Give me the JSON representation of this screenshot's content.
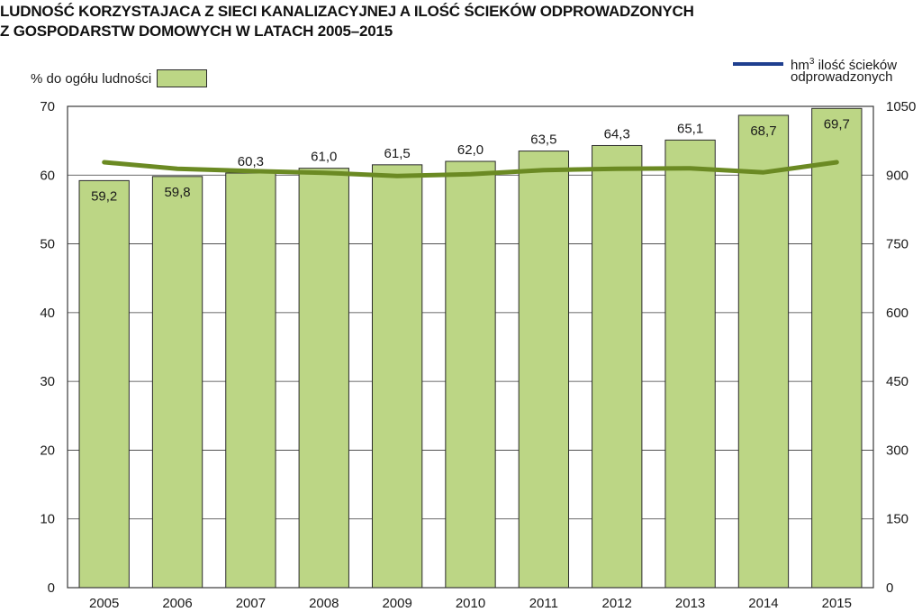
{
  "chart_data": {
    "type": "bar",
    "title": [
      "LUDNOŚĆ KORZYSTAJACA Z SIECI KANALIZACYJNEJ A ILOŚĆ ŚCIEKÓW ODPROWADZONYCH",
      "Z GOSPODARSTW DOMOWYCH W LATACH 2005–2015"
    ],
    "categories": [
      "2005",
      "2006",
      "2007",
      "2008",
      "2009",
      "2010",
      "2011",
      "2012",
      "2013",
      "2014",
      "2015"
    ],
    "series": [
      {
        "name": "% do ogółu ludności",
        "type": "bar",
        "axis": "left",
        "values": [
          59.2,
          59.8,
          60.3,
          61.0,
          61.5,
          62.0,
          63.5,
          64.3,
          65.1,
          68.7,
          69.7
        ],
        "labels": [
          "59,2",
          "59,8",
          "60,3",
          "61,0",
          "61,5",
          "62,0",
          "63,5",
          "64,3",
          "65,1",
          "68,7",
          "69,7"
        ],
        "color": "#bcd685"
      },
      {
        "name": [
          "ilość ścieków",
          "odprowadzonych"
        ],
        "unit": "hm",
        "unit_exp": "3",
        "type": "line",
        "axis": "right",
        "values": [
          928,
          914,
          909,
          905,
          898,
          902,
          911,
          914,
          915,
          906,
          928
        ],
        "color": "#6b8a23",
        "legend_color": "#1f3f8f"
      }
    ],
    "y_left": {
      "min": 0,
      "max": 70,
      "ticks": [
        "0",
        "10",
        "20",
        "30",
        "40",
        "50",
        "60",
        "70"
      ]
    },
    "y_right": {
      "min": 0,
      "max": 1050,
      "ticks": [
        "0",
        "150",
        "300",
        "450",
        "600",
        "750",
        "900",
        "1050"
      ]
    },
    "grid": true,
    "legend": "top"
  }
}
